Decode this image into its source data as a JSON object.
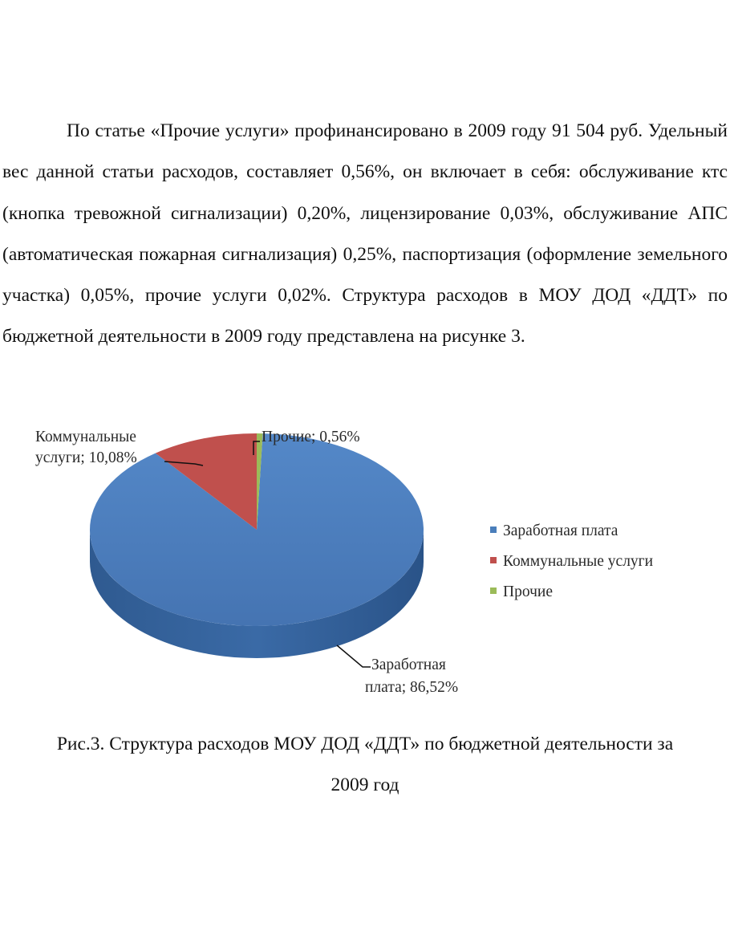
{
  "paragraph": "По статье «Прочие услуги» профинансировано в 2009 году 91 504 руб. Удельный вес данной статьи расходов, составляет 0,56%, он включает в себя: обслуживание ктс (кнопка тревожной сигнализации) 0,20%, лицензирование 0,03%, обслуживание АПС (автоматическая пожарная сигнализация) 0,25%, паспортизация (оформление земельного участка) 0,05%, прочие услуги 0,02%. Структура расходов в МОУ ДОД «ДДТ» по бюджетной деятельности в 2009 году представлена на рисунке 3.",
  "chart_data": {
    "type": "pie",
    "categories": [
      "Заработная плата",
      "Коммунальные услуги",
      "Прочие"
    ],
    "values": [
      86.52,
      10.08,
      0.56
    ],
    "colors": [
      "#4a7ebb",
      "#c0504d",
      "#9bbb59"
    ],
    "data_labels": {
      "salary": [
        "Заработная",
        "плата; 86,52%"
      ],
      "utilities": [
        "Коммунальные",
        "услуги; 10,08%"
      ],
      "other": "Прочие; 0,56%"
    },
    "legend": {
      "placement": "right",
      "items": [
        "Заработная плата",
        "Коммунальные услуги",
        "Прочие"
      ]
    }
  },
  "caption": {
    "line1": "Рис.3. Структура расходов МОУ ДОД «ДДТ» по бюджетной деятельности за",
    "line2": "2009 год"
  }
}
